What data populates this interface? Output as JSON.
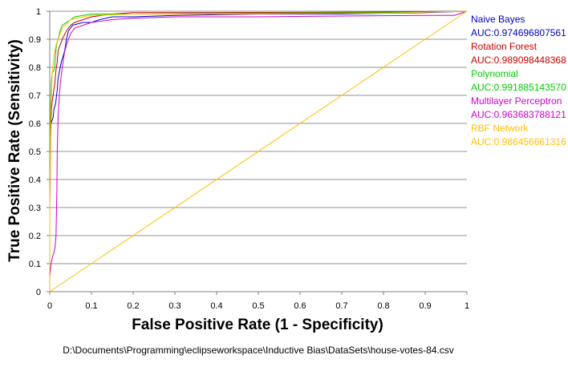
{
  "chart_data": {
    "type": "line",
    "title": "",
    "xlabel": "False Positive Rate (1 - Specificity)",
    "ylabel": "True Positive Rate (Sensitivity)",
    "xlim": [
      0,
      1
    ],
    "ylim": [
      0,
      1
    ],
    "x_ticks": [
      "0",
      "0.1",
      "0.2",
      "0.3",
      "0.4",
      "0.5",
      "0.6",
      "0.7",
      "0.8",
      "0.9",
      "1"
    ],
    "y_ticks": [
      "0",
      "0.1",
      "0.2",
      "0.3",
      "0.4",
      "0.5",
      "0.6",
      "0.7",
      "0.8",
      "0.9",
      "1"
    ],
    "grid": "horizontal",
    "legend_position": "right",
    "footer": "D:\\Documents\\Programming\\eclipseworkspace\\Inductive Bias\\DataSets\\house-votes-84.csv",
    "series": [
      {
        "name": "Naive Bayes",
        "auc_label": "AUC:0.974696807561",
        "color": "#0000cc",
        "points": [
          [
            0,
            0
          ],
          [
            0,
            0.57
          ],
          [
            0.003,
            0.6
          ],
          [
            0.008,
            0.62
          ],
          [
            0.01,
            0.65
          ],
          [
            0.014,
            0.67
          ],
          [
            0.018,
            0.72
          ],
          [
            0.02,
            0.76
          ],
          [
            0.025,
            0.8
          ],
          [
            0.028,
            0.82
          ],
          [
            0.032,
            0.84
          ],
          [
            0.036,
            0.86
          ],
          [
            0.04,
            0.9
          ],
          [
            0.045,
            0.93
          ],
          [
            0.055,
            0.95
          ],
          [
            0.08,
            0.96
          ],
          [
            0.1,
            0.96
          ],
          [
            0.12,
            0.97
          ],
          [
            0.15,
            0.98
          ],
          [
            0.2,
            0.98
          ],
          [
            0.3,
            0.985
          ],
          [
            0.5,
            0.99
          ],
          [
            0.7,
            0.99
          ],
          [
            0.9,
            0.995
          ],
          [
            1,
            1
          ]
        ]
      },
      {
        "name": "Rotation Forest",
        "auc_label": "AUC:0.989098448368",
        "color": "#cc0000",
        "points": [
          [
            0,
            0
          ],
          [
            0,
            0.3
          ],
          [
            0.002,
            0.55
          ],
          [
            0.004,
            0.65
          ],
          [
            0.006,
            0.68
          ],
          [
            0.01,
            0.72
          ],
          [
            0.012,
            0.74
          ],
          [
            0.015,
            0.79
          ],
          [
            0.018,
            0.82
          ],
          [
            0.02,
            0.86
          ],
          [
            0.025,
            0.88
          ],
          [
            0.03,
            0.9
          ],
          [
            0.04,
            0.93
          ],
          [
            0.05,
            0.95
          ],
          [
            0.06,
            0.96
          ],
          [
            0.08,
            0.97
          ],
          [
            0.1,
            0.98
          ],
          [
            0.15,
            0.99
          ],
          [
            0.2,
            0.995
          ],
          [
            0.4,
            0.995
          ],
          [
            0.6,
            0.996
          ],
          [
            0.8,
            0.997
          ],
          [
            1,
            1
          ]
        ]
      },
      {
        "name": "Polynomial",
        "auc_label": "AUC:0.991885143570",
        "color": "#00cc00",
        "points": [
          [
            0,
            0
          ],
          [
            0,
            0.6
          ],
          [
            0.002,
            0.65
          ],
          [
            0.004,
            0.75
          ],
          [
            0.006,
            0.78
          ],
          [
            0.01,
            0.79
          ],
          [
            0.012,
            0.8
          ],
          [
            0.014,
            0.85
          ],
          [
            0.016,
            0.88
          ],
          [
            0.02,
            0.9
          ],
          [
            0.025,
            0.93
          ],
          [
            0.03,
            0.95
          ],
          [
            0.04,
            0.96
          ],
          [
            0.06,
            0.98
          ],
          [
            0.1,
            0.99
          ],
          [
            0.2,
            0.99
          ],
          [
            0.4,
            0.992
          ],
          [
            0.6,
            0.994
          ],
          [
            0.8,
            0.995
          ],
          [
            1,
            1
          ]
        ]
      },
      {
        "name": "Multilayer Perceptron",
        "auc_label": "AUC:0.963683788121",
        "color": "#cc00cc",
        "points": [
          [
            0,
            0
          ],
          [
            0,
            0.05
          ],
          [
            0.003,
            0.1
          ],
          [
            0.006,
            0.12
          ],
          [
            0.01,
            0.14
          ],
          [
            0.013,
            0.16
          ],
          [
            0.015,
            0.2
          ],
          [
            0.017,
            0.35
          ],
          [
            0.018,
            0.5
          ],
          [
            0.02,
            0.62
          ],
          [
            0.023,
            0.7
          ],
          [
            0.026,
            0.75
          ],
          [
            0.03,
            0.8
          ],
          [
            0.035,
            0.85
          ],
          [
            0.04,
            0.88
          ],
          [
            0.05,
            0.92
          ],
          [
            0.06,
            0.94
          ],
          [
            0.08,
            0.95
          ],
          [
            0.1,
            0.96
          ],
          [
            0.15,
            0.97
          ],
          [
            0.2,
            0.975
          ],
          [
            0.3,
            0.98
          ],
          [
            0.5,
            0.98
          ],
          [
            0.7,
            0.983
          ],
          [
            0.9,
            0.985
          ],
          [
            0.97,
            0.985
          ],
          [
            1,
            1
          ]
        ]
      },
      {
        "name": "RBF Network",
        "auc_label": "AUC:0.986456661316",
        "color": "#ffbf00",
        "points": [
          [
            0,
            0
          ],
          [
            0,
            0.35
          ],
          [
            0.002,
            0.62
          ],
          [
            0.004,
            0.7
          ],
          [
            0.006,
            0.78
          ],
          [
            0.01,
            0.84
          ],
          [
            0.015,
            0.88
          ],
          [
            0.02,
            0.9
          ],
          [
            0.03,
            0.94
          ],
          [
            0.05,
            0.97
          ],
          [
            0.08,
            0.98
          ],
          [
            0.1,
            0.985
          ],
          [
            0.2,
            0.99
          ],
          [
            0.4,
            0.99
          ],
          [
            0.6,
            0.992
          ],
          [
            0.8,
            0.993
          ],
          [
            1,
            1
          ]
        ]
      },
      {
        "name": "",
        "auc_label": "",
        "color": "#ffbf00",
        "points": [
          [
            0,
            0
          ],
          [
            1,
            1
          ]
        ]
      }
    ]
  }
}
